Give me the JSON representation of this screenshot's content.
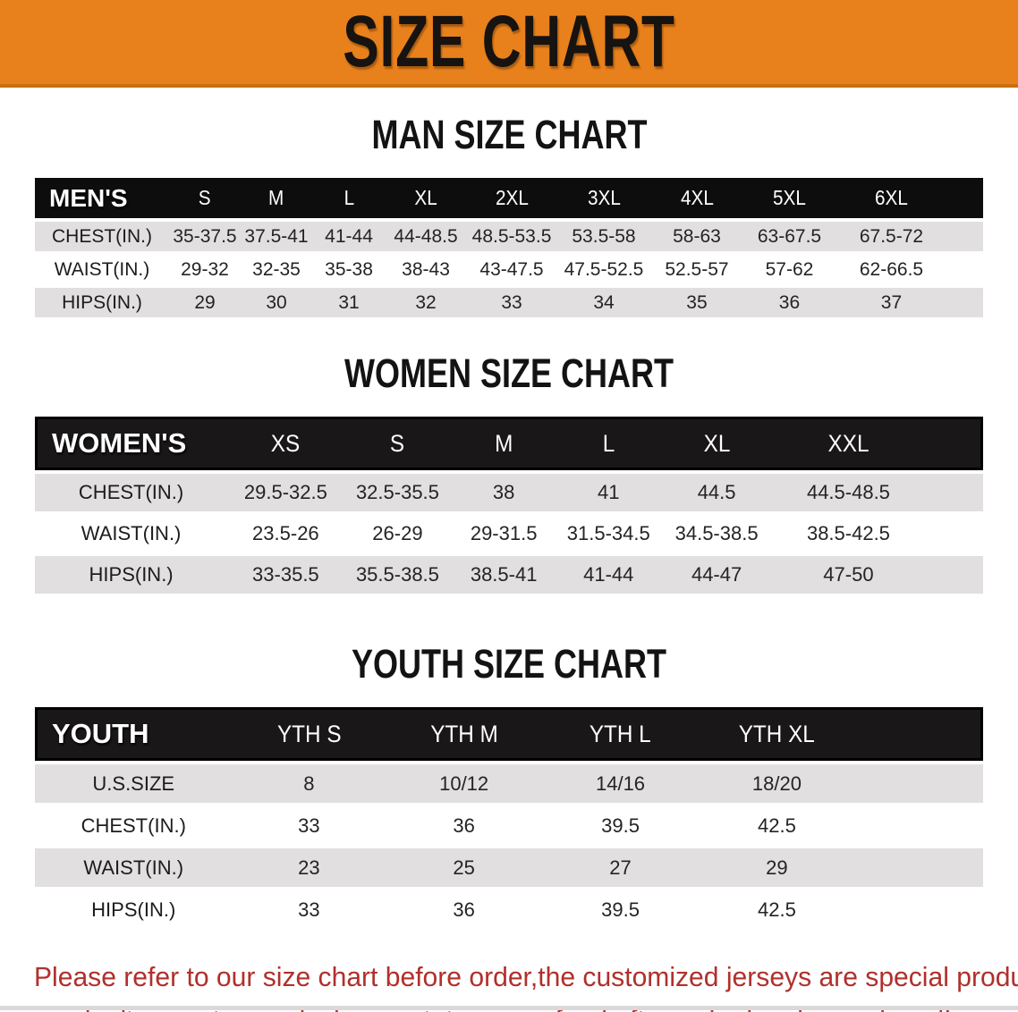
{
  "banner": {
    "title": "SIZE CHART",
    "bg_color": "#E8811C"
  },
  "sections": [
    {
      "title": "MAN SIZE CHART",
      "table": {
        "header_label": "MEN'S",
        "sizes": [
          "S",
          "M",
          "L",
          "XL",
          "2XL",
          "3XL",
          "4XL",
          "5XL",
          "6XL"
        ],
        "rows": [
          {
            "label": "CHEST(IN.)",
            "values": [
              "35-37.5",
              "37.5-41",
              "41-44",
              "44-48.5",
              "48.5-53.5",
              "53.5-58",
              "58-63",
              "63-67.5",
              "67.5-72"
            ]
          },
          {
            "label": "WAIST(IN.)",
            "values": [
              "29-32",
              "32-35",
              "35-38",
              "38-43",
              "43-47.5",
              "47.5-52.5",
              "52.5-57",
              "57-62",
              "62-66.5"
            ]
          },
          {
            "label": "HIPS(IN.)",
            "values": [
              "29",
              "30",
              "31",
              "32",
              "33",
              "34",
              "35",
              "36",
              "37"
            ]
          }
        ]
      }
    },
    {
      "title": "WOMEN SIZE CHART",
      "table": {
        "header_label": "WOMEN'S",
        "sizes": [
          "XS",
          "S",
          "M",
          "L",
          "XL",
          "XXL"
        ],
        "rows": [
          {
            "label": "CHEST(IN.)",
            "values": [
              "29.5-32.5",
              "32.5-35.5",
              "38",
              "41",
              "44.5",
              "44.5-48.5"
            ]
          },
          {
            "label": "WAIST(IN.)",
            "values": [
              "23.5-26",
              "26-29",
              "29-31.5",
              "31.5-34.5",
              "34.5-38.5",
              "38.5-42.5"
            ]
          },
          {
            "label": "HIPS(IN.)",
            "values": [
              "33-35.5",
              "35.5-38.5",
              "38.5-41",
              "41-44",
              "44-47",
              "47-50"
            ]
          }
        ]
      }
    },
    {
      "title": "YOUTH SIZE CHART",
      "table": {
        "header_label": "YOUTH",
        "sizes": [
          "YTH S",
          "YTH M",
          "YTH L",
          "YTH XL"
        ],
        "rows": [
          {
            "label": "U.S.SIZE",
            "values": [
              "8",
              "10/12",
              "14/16",
              "18/20"
            ]
          },
          {
            "label": "CHEST(IN.)",
            "values": [
              "33",
              "36",
              "39.5",
              "42.5"
            ]
          },
          {
            "label": "WAIST(IN.)",
            "values": [
              "23",
              "25",
              "27",
              "29"
            ]
          },
          {
            "label": "HIPS(IN.)",
            "values": [
              "33",
              "36",
              "39.5",
              "42.5"
            ]
          }
        ]
      }
    }
  ],
  "disclaimer": {
    "line1": "Please refer to our size chart before order,the customized jerseys are special products,",
    "line2": "we don't accept cancel, change, teturn or refund after order has been placed!",
    "color": "#B0302C"
  },
  "colors": {
    "banner_orange": "#E8811C",
    "banner_edge": "#C9700F",
    "header_black": "#0E0D0D",
    "row_gray": "#E1DFE0",
    "row_white": "#FFFFFF",
    "disclaimer_red": "#B0302C"
  }
}
